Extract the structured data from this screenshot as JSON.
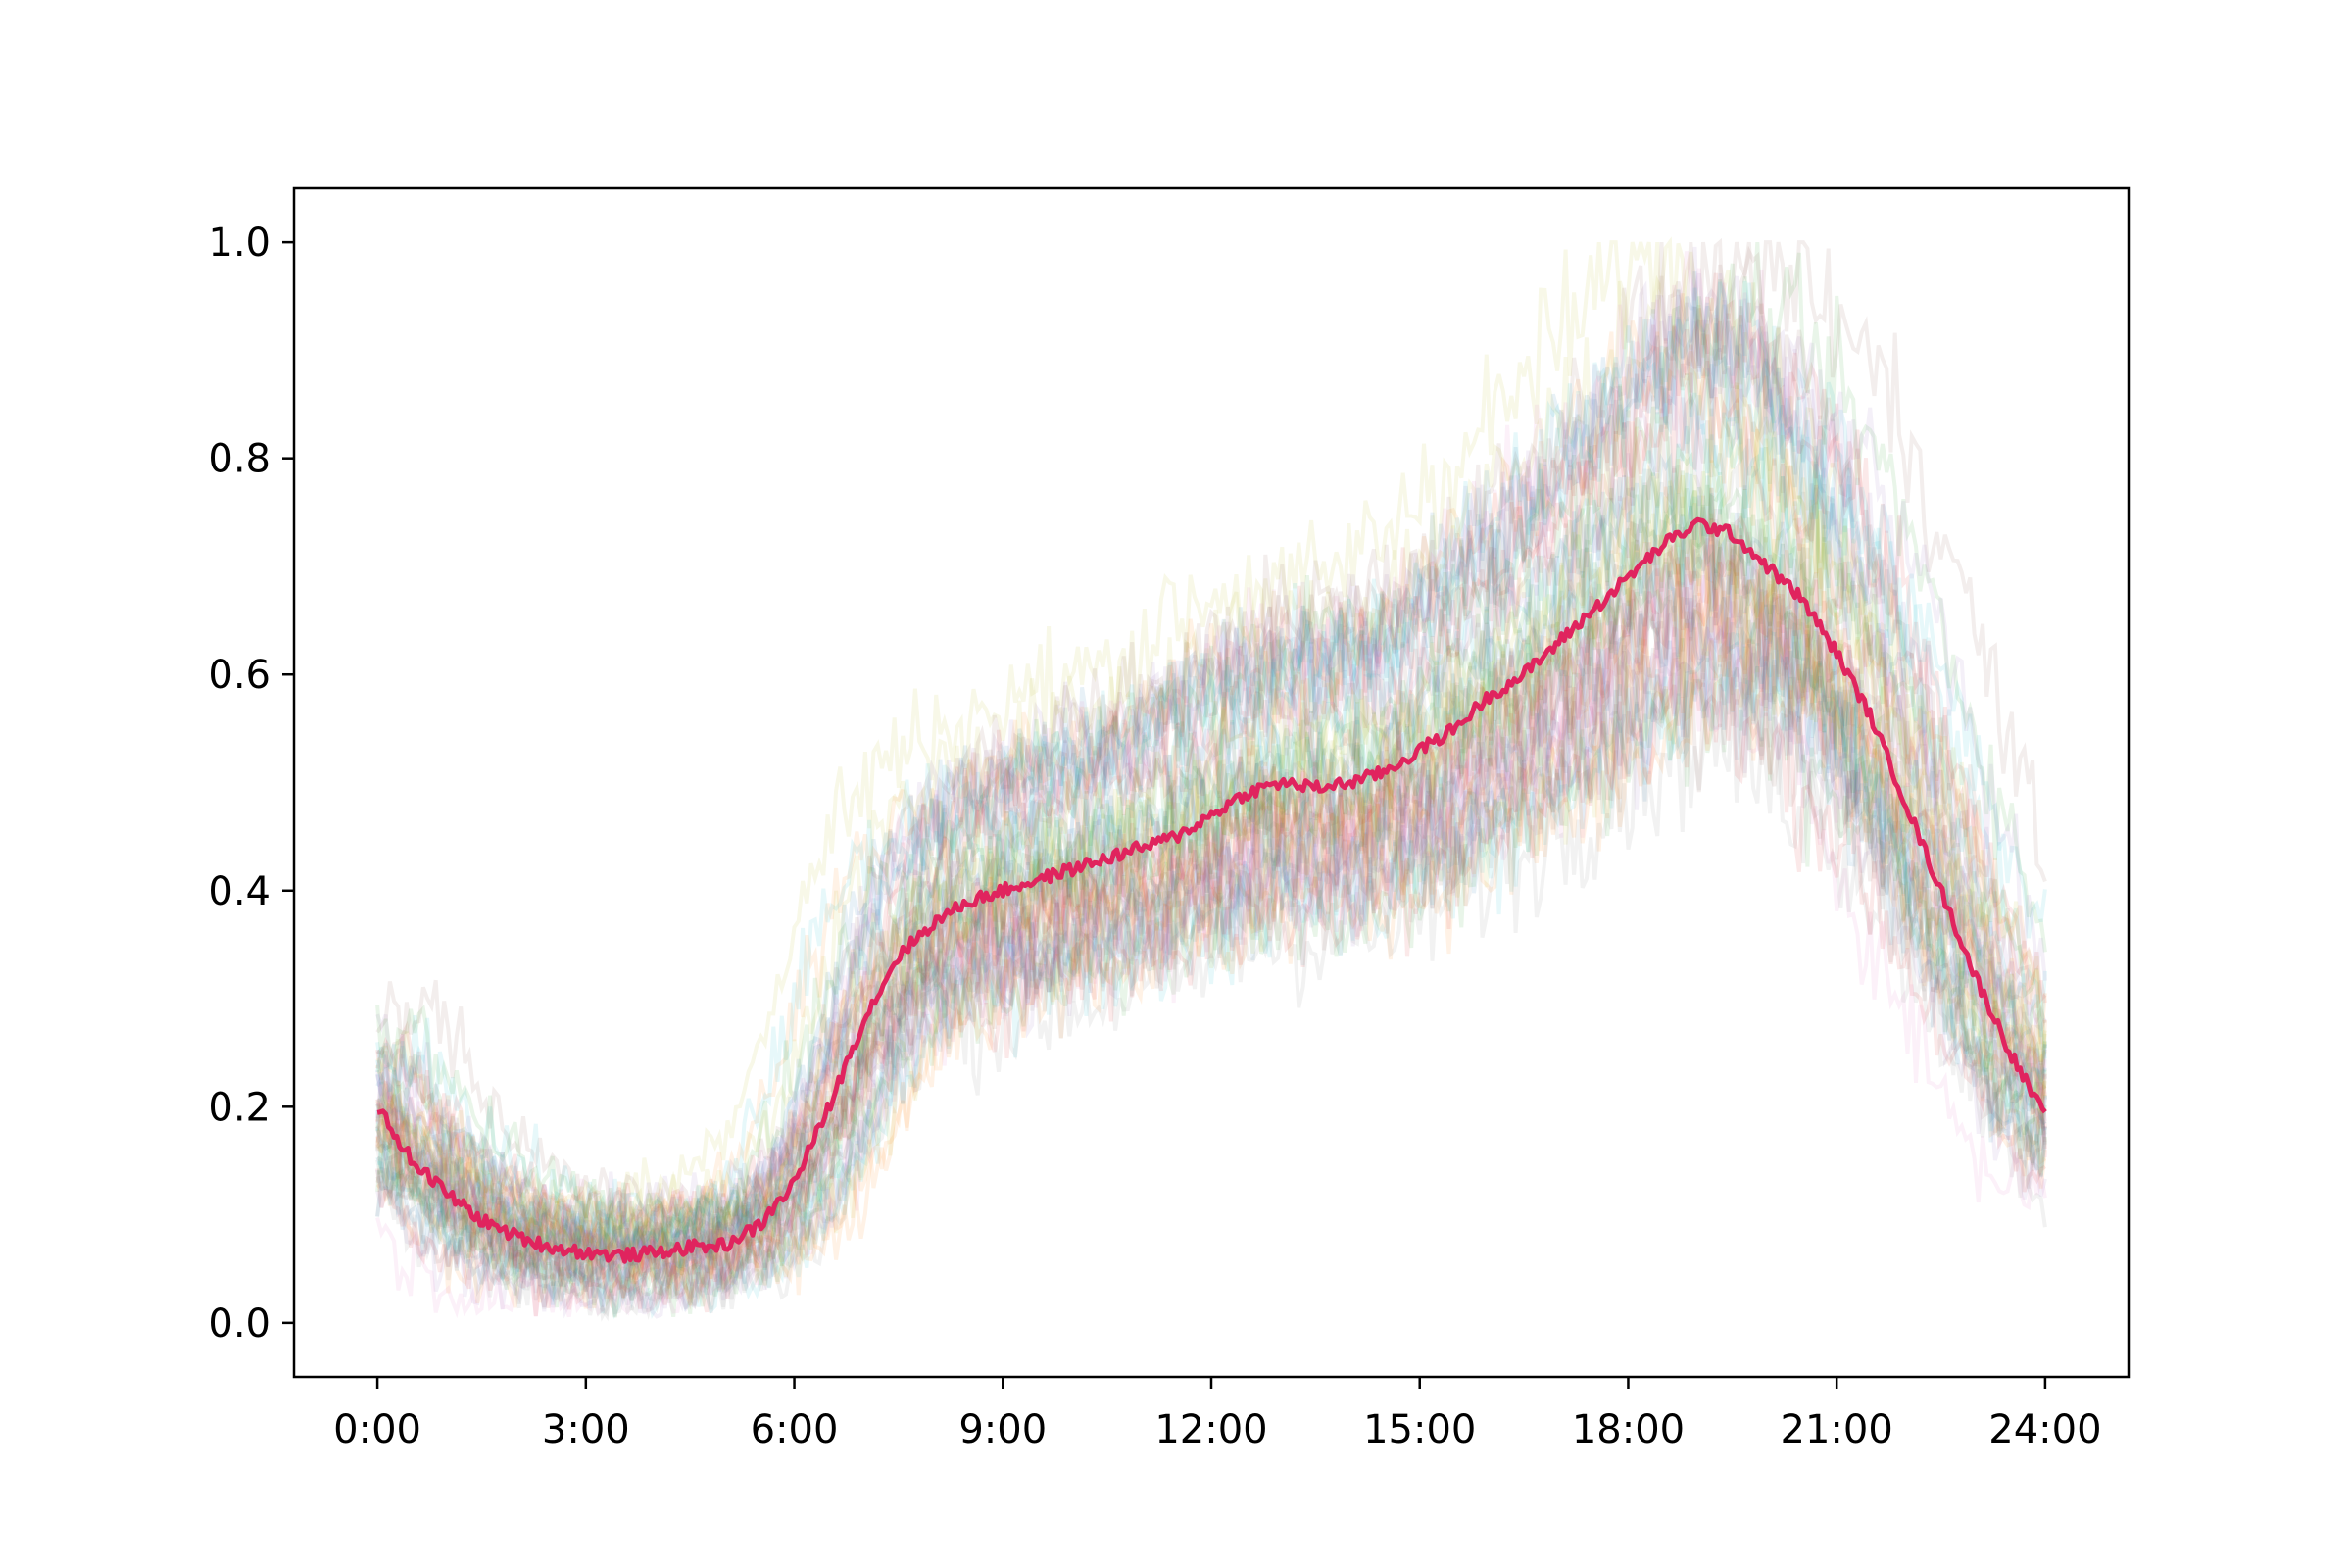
{
  "chart_data": {
    "type": "line",
    "title": "",
    "xlabel": "",
    "ylabel": "",
    "x_unit": "hours",
    "xlim": [
      -1.2,
      25.2
    ],
    "ylim": [
      -0.05,
      1.05
    ],
    "grid": false,
    "legend": "none",
    "x_ticks": [
      {
        "value": 0,
        "label": "0:00"
      },
      {
        "value": 3,
        "label": "3:00"
      },
      {
        "value": 6,
        "label": "6:00"
      },
      {
        "value": 9,
        "label": "9:00"
      },
      {
        "value": 12,
        "label": "12:00"
      },
      {
        "value": 15,
        "label": "15:00"
      },
      {
        "value": 18,
        "label": "18:00"
      },
      {
        "value": 21,
        "label": "21:00"
      },
      {
        "value": 24,
        "label": "24:00"
      }
    ],
    "y_ticks": [
      {
        "value": 0.0,
        "label": "0.0"
      },
      {
        "value": 0.2,
        "label": "0.2"
      },
      {
        "value": 0.4,
        "label": "0.4"
      },
      {
        "value": 0.6,
        "label": "0.6"
      },
      {
        "value": 0.8,
        "label": "0.8"
      },
      {
        "value": 1.0,
        "label": "1.0"
      }
    ],
    "series": [
      {
        "role": "mean",
        "color": "#e0245e",
        "x": [
          0,
          0.5,
          1,
          1.5,
          2,
          2.5,
          3,
          3.5,
          4,
          4.5,
          5,
          5.5,
          6,
          6.5,
          7,
          7.5,
          8,
          8.5,
          9,
          9.5,
          10,
          10.5,
          11,
          11.5,
          12,
          12.5,
          13,
          13.5,
          14,
          14.5,
          15,
          15.5,
          16,
          16.5,
          17,
          17.5,
          18,
          18.5,
          19,
          19.5,
          20,
          20.5,
          21,
          21.5,
          22,
          22.5,
          23,
          23.5,
          24
        ],
        "y": [
          0.2,
          0.15,
          0.12,
          0.095,
          0.08,
          0.07,
          0.065,
          0.062,
          0.065,
          0.07,
          0.072,
          0.09,
          0.13,
          0.2,
          0.28,
          0.34,
          0.37,
          0.39,
          0.4,
          0.41,
          0.42,
          0.43,
          0.44,
          0.45,
          0.47,
          0.49,
          0.5,
          0.495,
          0.5,
          0.51,
          0.53,
          0.55,
          0.58,
          0.6,
          0.63,
          0.66,
          0.69,
          0.72,
          0.74,
          0.73,
          0.7,
          0.67,
          0.62,
          0.56,
          0.48,
          0.4,
          0.32,
          0.25,
          0.19
        ]
      }
    ],
    "background_traces": {
      "count": 60,
      "opacity": 0.1,
      "colors": [
        "#1f77b4",
        "#ff7f0e",
        "#2ca02c",
        "#d62728",
        "#9467bd",
        "#8c564b",
        "#e377c2",
        "#7f7f7f",
        "#bcbd22",
        "#17becf"
      ]
    }
  }
}
